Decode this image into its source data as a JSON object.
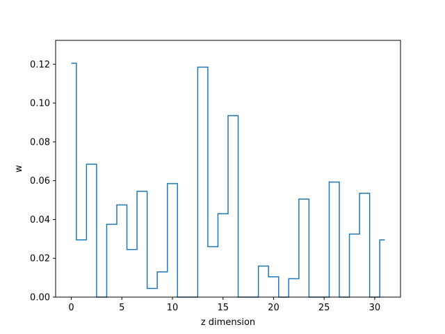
{
  "chart_data": {
    "type": "line",
    "drawstyle": "steps-mid",
    "xlabel": "z dimension",
    "ylabel": "w",
    "xlim": [
      -1.55,
      32.55
    ],
    "ylim": [
      0.0,
      0.1323
    ],
    "xticks": [
      0,
      5,
      10,
      15,
      20,
      25,
      30
    ],
    "yticks": [
      0.0,
      0.02,
      0.04,
      0.06,
      0.08,
      0.1,
      0.12
    ],
    "ytick_labels": [
      "0.00",
      "0.02",
      "0.04",
      "0.06",
      "0.08",
      "0.10",
      "0.12"
    ],
    "grid": false,
    "line_color": "#1f77b4",
    "series": [
      {
        "x": [
          0,
          1,
          2,
          3,
          4,
          5,
          6,
          7,
          8,
          9,
          10,
          11,
          12,
          13,
          14,
          15,
          16,
          17,
          18,
          19,
          20,
          21,
          22,
          23,
          24,
          25,
          26,
          27,
          28,
          29,
          30,
          31
        ],
        "values": [
          0.1205,
          0.0295,
          0.0685,
          0.0,
          0.0375,
          0.0475,
          0.0245,
          0.0545,
          0.0045,
          0.013,
          0.0585,
          0.0,
          0.0,
          0.1185,
          0.026,
          0.043,
          0.0935,
          0.0,
          0.0,
          0.016,
          0.0105,
          0.0,
          0.0095,
          0.0505,
          0.0,
          0.0,
          0.0593,
          0.0,
          0.0325,
          0.0535,
          0.0,
          0.0295
        ]
      }
    ]
  }
}
